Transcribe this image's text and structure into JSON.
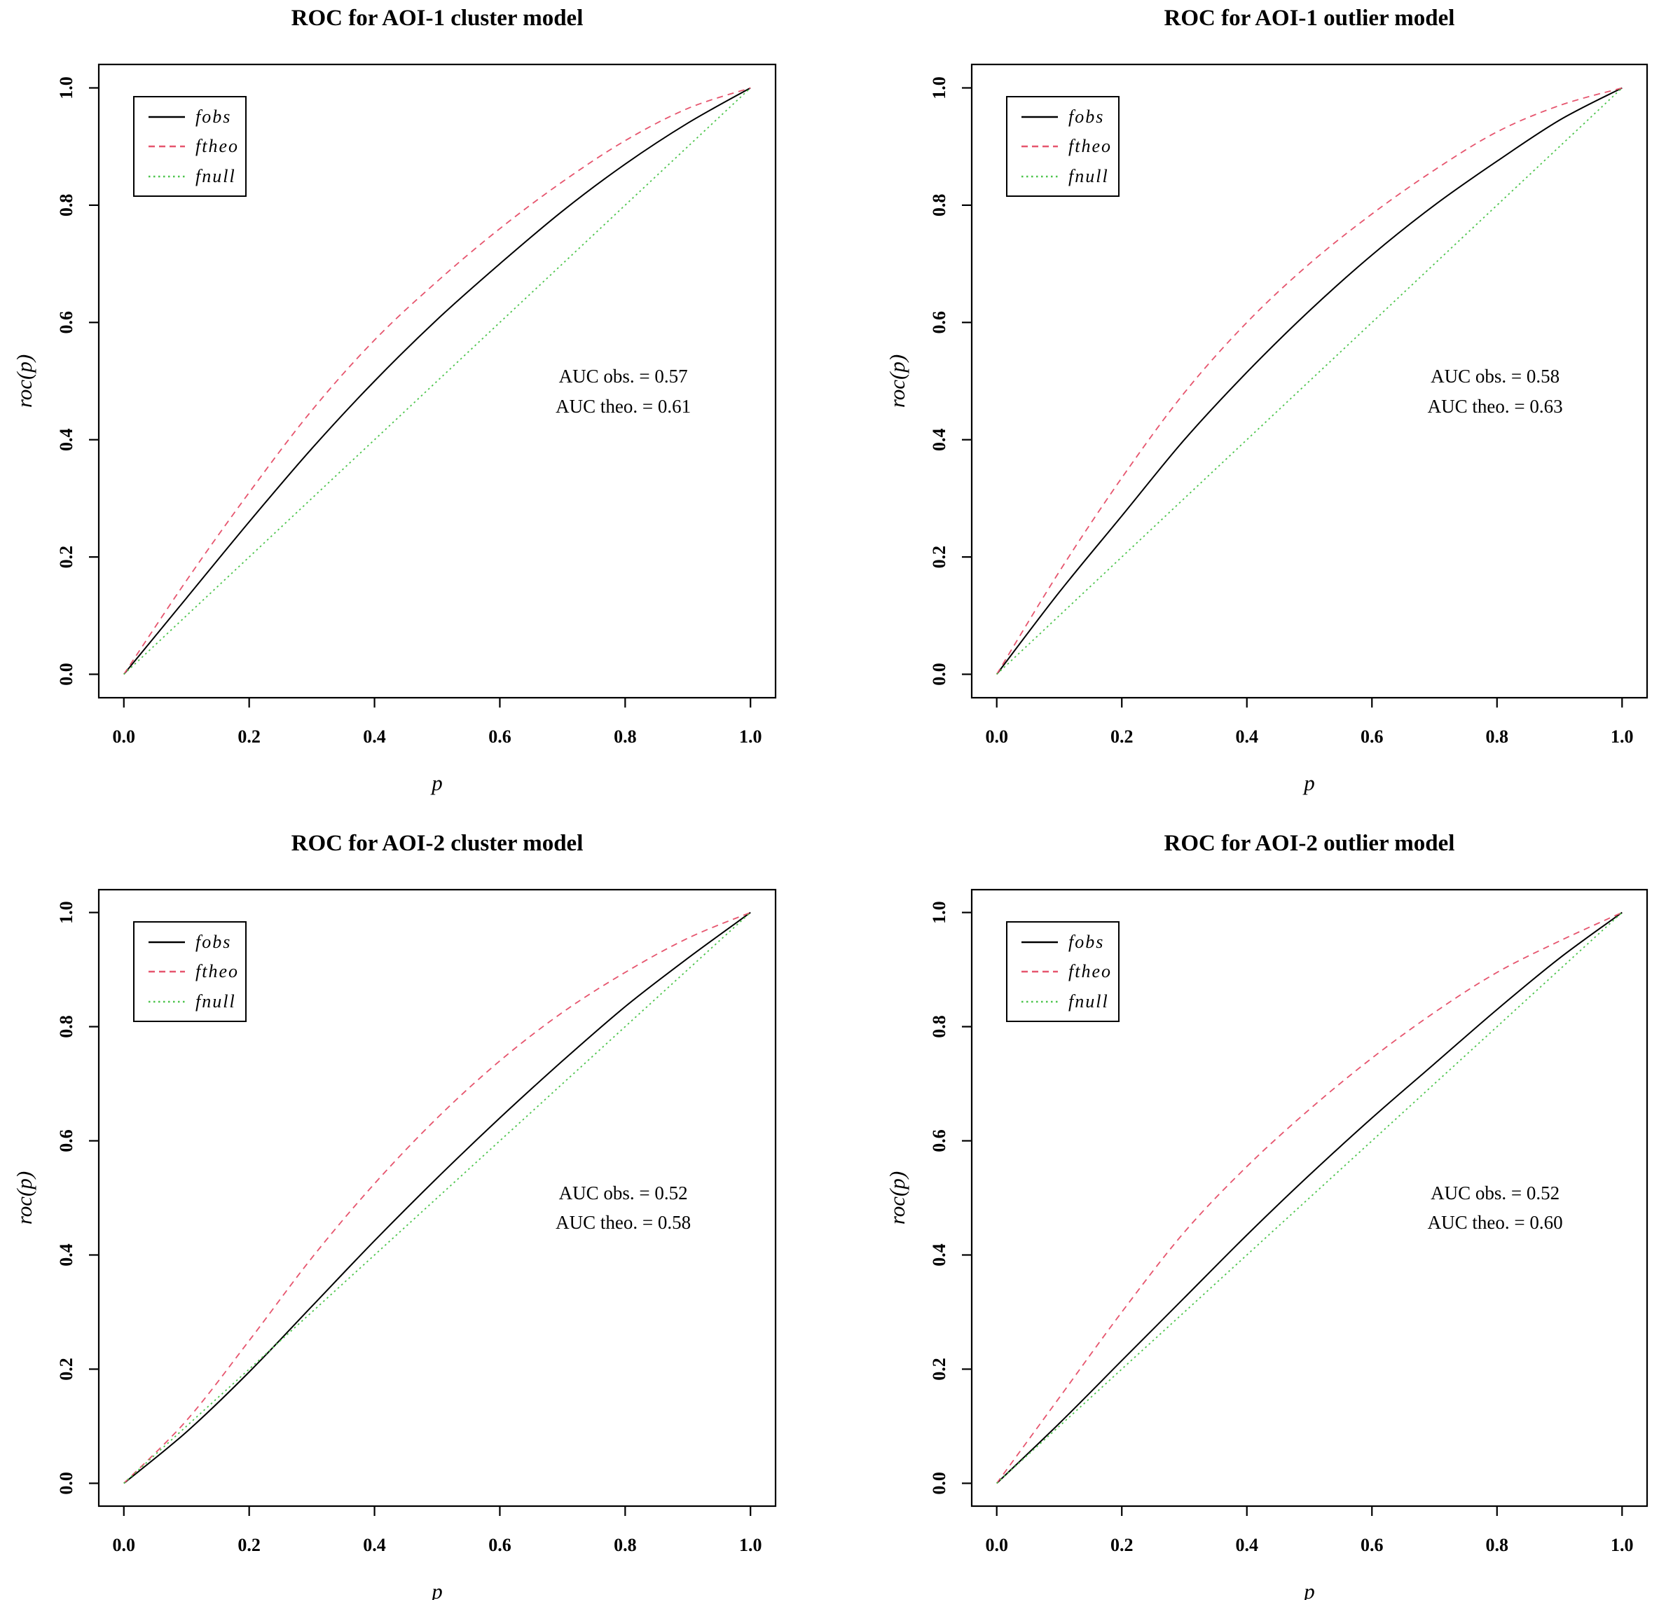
{
  "colors": {
    "fobs": "#000000",
    "ftheo": "#e6556e",
    "fnull": "#4cc44c",
    "axis": "#000000",
    "background": "#ffffff"
  },
  "axes": {
    "xlabel": "p",
    "ylabel": "roc(p)",
    "xlim": [
      0,
      1
    ],
    "ylim": [
      0,
      1
    ],
    "x_tick_labels": [
      "0.0",
      "0.2",
      "0.4",
      "0.6",
      "0.8",
      "1.0"
    ],
    "y_tick_labels": [
      "0.0",
      "0.2",
      "0.4",
      "0.6",
      "0.8",
      "1.0"
    ],
    "grid": false
  },
  "legend": {
    "position": "topleft",
    "entries": [
      {
        "label": "fobs",
        "color_key": "fobs",
        "linetype": "solid"
      },
      {
        "label": "ftheo",
        "color_key": "ftheo",
        "linetype": "dashed"
      },
      {
        "label": "fnull",
        "color_key": "fnull",
        "linetype": "dotted"
      }
    ]
  },
  "chart_data": [
    {
      "type": "line",
      "title": "ROC for AOI-1 cluster model",
      "xlabel": "p",
      "ylabel": "roc(p)",
      "xlim": [
        0,
        1
      ],
      "ylim": [
        0,
        1
      ],
      "annotations": {
        "auc_obs": "AUC obs. = 0.57",
        "auc_theo": "AUC theo. = 0.61"
      },
      "x": [
        0,
        0.1,
        0.2,
        0.3,
        0.4,
        0.5,
        0.6,
        0.7,
        0.8,
        0.9,
        1
      ],
      "series": [
        {
          "name": "fobs",
          "values": [
            0,
            0.13,
            0.26,
            0.385,
            0.5,
            0.605,
            0.7,
            0.79,
            0.87,
            0.94,
            1
          ]
        },
        {
          "name": "ftheo",
          "values": [
            0,
            0.16,
            0.31,
            0.45,
            0.57,
            0.67,
            0.76,
            0.84,
            0.91,
            0.965,
            1
          ]
        },
        {
          "name": "fnull",
          "values": [
            0,
            0.1,
            0.2,
            0.3,
            0.4,
            0.5,
            0.6,
            0.7,
            0.8,
            0.9,
            1
          ]
        }
      ]
    },
    {
      "type": "line",
      "title": "ROC for AOI-1 outlier model",
      "xlabel": "p",
      "ylabel": "roc(p)",
      "xlim": [
        0,
        1
      ],
      "ylim": [
        0,
        1
      ],
      "annotations": {
        "auc_obs": "AUC obs. = 0.58",
        "auc_theo": "AUC theo. = 0.63"
      },
      "x": [
        0,
        0.1,
        0.2,
        0.3,
        0.4,
        0.5,
        0.6,
        0.7,
        0.8,
        0.9,
        1
      ],
      "series": [
        {
          "name": "fobs",
          "values": [
            0,
            0.14,
            0.27,
            0.4,
            0.515,
            0.62,
            0.715,
            0.8,
            0.875,
            0.945,
            1
          ]
        },
        {
          "name": "ftheo",
          "values": [
            0,
            0.175,
            0.335,
            0.48,
            0.6,
            0.7,
            0.785,
            0.86,
            0.925,
            0.97,
            1
          ]
        },
        {
          "name": "fnull",
          "values": [
            0,
            0.1,
            0.2,
            0.3,
            0.4,
            0.5,
            0.6,
            0.7,
            0.8,
            0.9,
            1
          ]
        }
      ]
    },
    {
      "type": "line",
      "title": "ROC for AOI-2 cluster model",
      "xlabel": "p",
      "ylabel": "roc(p)",
      "xlim": [
        0,
        1
      ],
      "ylim": [
        0,
        1
      ],
      "annotations": {
        "auc_obs": "AUC obs. = 0.52",
        "auc_theo": "AUC theo. = 0.58"
      },
      "x": [
        0,
        0.1,
        0.2,
        0.3,
        0.4,
        0.5,
        0.6,
        0.7,
        0.8,
        0.9,
        1
      ],
      "series": [
        {
          "name": "fobs",
          "values": [
            0,
            0.09,
            0.195,
            0.31,
            0.425,
            0.535,
            0.64,
            0.74,
            0.835,
            0.92,
            1
          ]
        },
        {
          "name": "ftheo",
          "values": [
            0,
            0.11,
            0.25,
            0.395,
            0.525,
            0.64,
            0.74,
            0.825,
            0.895,
            0.955,
            1
          ]
        },
        {
          "name": "fnull",
          "values": [
            0,
            0.1,
            0.2,
            0.3,
            0.4,
            0.5,
            0.6,
            0.7,
            0.8,
            0.9,
            1
          ]
        }
      ]
    },
    {
      "type": "line",
      "title": "ROC for AOI-2 outlier model",
      "xlabel": "p",
      "ylabel": "roc(p)",
      "xlim": [
        0,
        1
      ],
      "ylim": [
        0,
        1
      ],
      "annotations": {
        "auc_obs": "AUC obs. = 0.52",
        "auc_theo": "AUC theo. = 0.60"
      },
      "x": [
        0,
        0.1,
        0.2,
        0.3,
        0.4,
        0.5,
        0.6,
        0.7,
        0.8,
        0.9,
        1
      ],
      "series": [
        {
          "name": "fobs",
          "values": [
            0,
            0.105,
            0.215,
            0.325,
            0.435,
            0.54,
            0.64,
            0.735,
            0.83,
            0.92,
            1
          ]
        },
        {
          "name": "ftheo",
          "values": [
            0,
            0.15,
            0.3,
            0.44,
            0.555,
            0.655,
            0.745,
            0.825,
            0.895,
            0.95,
            1
          ]
        },
        {
          "name": "fnull",
          "values": [
            0,
            0.1,
            0.2,
            0.3,
            0.4,
            0.5,
            0.6,
            0.7,
            0.8,
            0.9,
            1
          ]
        }
      ]
    }
  ]
}
